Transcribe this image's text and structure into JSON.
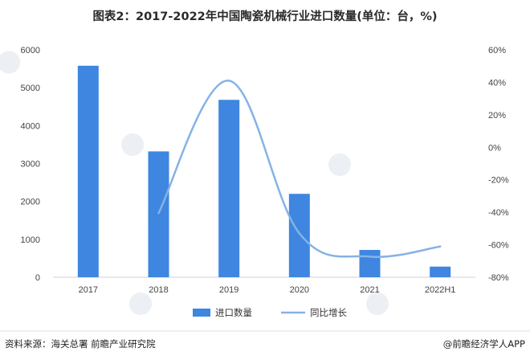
{
  "chart_data": {
    "type": "bar",
    "title": "图表2：2017-2022年中国陶瓷机械行业进口数量(单位：台，%)",
    "categories": [
      "2017",
      "2018",
      "2019",
      "2020",
      "2021",
      "2022H1"
    ],
    "series": [
      {
        "name": "进口数量",
        "type": "bar",
        "axis": "left",
        "color": "#3e86e0",
        "values": [
          5580,
          3320,
          4680,
          2200,
          720,
          280
        ]
      },
      {
        "name": "同比增长",
        "type": "line",
        "axis": "right",
        "color": "#86b2e6",
        "values": [
          null,
          -40.5,
          41,
          -53,
          -67.3,
          -61.1
        ]
      }
    ],
    "y_left": {
      "min": 0,
      "max": 6000,
      "ticks": [
        "0",
        "1000",
        "2000",
        "3000",
        "4000",
        "5000",
        "6000"
      ]
    },
    "y_right": {
      "min": -80,
      "max": 60,
      "ticks": [
        "-80%",
        "-60%",
        "-40%",
        "-20%",
        "0%",
        "20%",
        "40%",
        "60%"
      ]
    },
    "grid": false,
    "legend_position": "bottom-center"
  },
  "footer": {
    "source": "资料来源：海关总署 前瞻产业研究院",
    "brand": "@前瞻经济学人APP"
  }
}
